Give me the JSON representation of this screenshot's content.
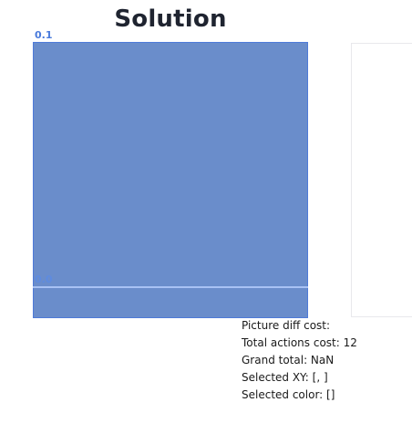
{
  "title": "Solution",
  "axis": {
    "top_label": "0.1",
    "bottom_label": "0.0"
  },
  "colors": {
    "canvas_fill": "#6a8dcb",
    "canvas_border": "#4f7bd9",
    "axis_label": "#4a7bdc",
    "baseline": "#a8c2f4"
  },
  "info": {
    "picture_diff_cost": "Picture diff cost:",
    "total_actions_cost": "Total actions cost: 12",
    "grand_total": "Grand total: NaN",
    "selected_xy": "Selected XY: [, ]",
    "selected_color": "Selected color: []"
  }
}
